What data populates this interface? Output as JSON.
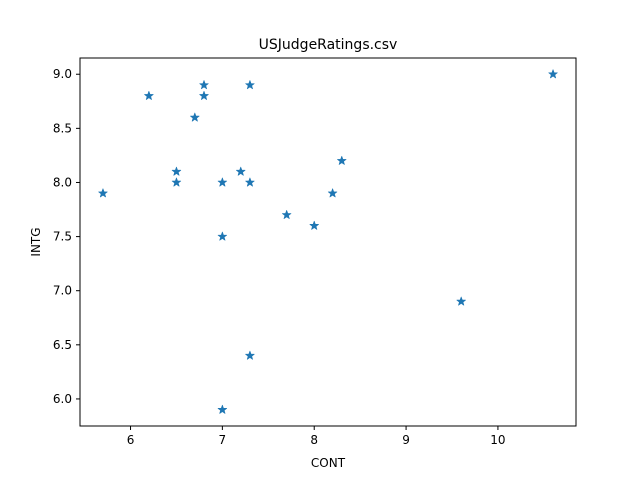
{
  "chart_data": {
    "type": "scatter",
    "title": "USJudgeRatings.csv",
    "xlabel": "CONT",
    "ylabel": "INTG",
    "xlim": [
      5.45,
      10.85
    ],
    "ylim": [
      5.75,
      9.15
    ],
    "xticks": [
      6,
      7,
      8,
      9,
      10
    ],
    "yticks": [
      6.0,
      6.5,
      7.0,
      7.5,
      8.0,
      8.5,
      9.0
    ],
    "xtick_labels": [
      "6",
      "7",
      "8",
      "9",
      "10"
    ],
    "ytick_labels": [
      "6.0",
      "6.5",
      "7.0",
      "7.5",
      "8.0",
      "8.5",
      "9.0"
    ],
    "grid": false,
    "marker": "star",
    "color": "#1f77b4",
    "points": [
      {
        "x": 5.7,
        "y": 7.9
      },
      {
        "x": 6.2,
        "y": 8.8
      },
      {
        "x": 6.5,
        "y": 8.1
      },
      {
        "x": 6.5,
        "y": 8.0
      },
      {
        "x": 6.7,
        "y": 8.6
      },
      {
        "x": 6.8,
        "y": 8.9
      },
      {
        "x": 6.8,
        "y": 8.8
      },
      {
        "x": 7.0,
        "y": 8.0
      },
      {
        "x": 7.0,
        "y": 7.5
      },
      {
        "x": 7.0,
        "y": 5.9
      },
      {
        "x": 7.2,
        "y": 8.1
      },
      {
        "x": 7.3,
        "y": 8.9
      },
      {
        "x": 7.3,
        "y": 8.0
      },
      {
        "x": 7.3,
        "y": 6.4
      },
      {
        "x": 7.7,
        "y": 7.7
      },
      {
        "x": 8.0,
        "y": 7.6
      },
      {
        "x": 8.2,
        "y": 7.9
      },
      {
        "x": 8.3,
        "y": 8.2
      },
      {
        "x": 9.6,
        "y": 6.9
      },
      {
        "x": 10.6,
        "y": 9.0
      }
    ]
  }
}
